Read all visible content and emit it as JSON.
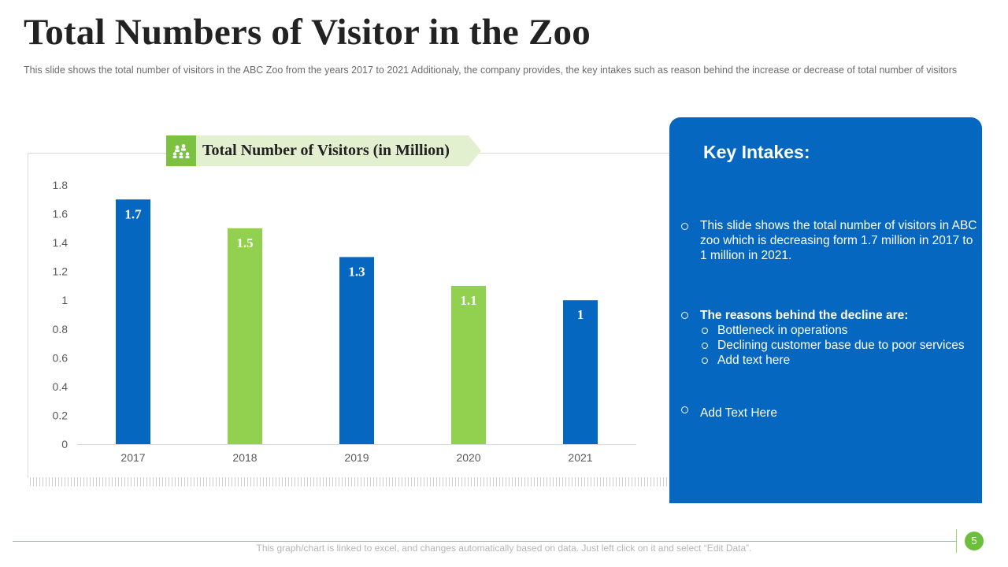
{
  "slide": {
    "title": "Total Numbers of Visitor in the Zoo",
    "subtitle": "This slide shows the total number of visitors in the ABC Zoo from the years 2017 to 2021 Additionaly, the company provides, the key intakes such as reason behind the increase or decrease of total number of visitors",
    "footer_note": "This graph/chart is linked to excel, and changes automatically based on data. Just left click on it and select “Edit Data”.",
    "page_number": "5"
  },
  "chart_data": {
    "type": "bar",
    "title": "Total Number of Visitors (in Million)",
    "categories": [
      "2017",
      "2018",
      "2019",
      "2020",
      "2021"
    ],
    "values": [
      1.7,
      1.5,
      1.3,
      1.1,
      1
    ],
    "data_labels": [
      "1.7",
      "1.5",
      "1.3",
      "1.1",
      "1"
    ],
    "bar_colors": [
      "#0567bf",
      "#92d050",
      "#0567bf",
      "#92d050",
      "#0567bf"
    ],
    "ylim": [
      0,
      1.8
    ],
    "yticks": [
      0,
      0.2,
      0.4,
      0.6,
      0.8,
      1,
      1.2,
      1.4,
      1.6,
      1.8
    ],
    "ytick_labels": [
      "0",
      "0.2",
      "0.4",
      "0.6",
      "0.8",
      "1",
      "1.2",
      "1.4",
      "1.6",
      "1.8"
    ],
    "xlabel": "",
    "ylabel": "",
    "grid": false,
    "legend": "none",
    "title_icon": "people-group-icon"
  },
  "key_intakes": {
    "heading": "Key Intakes:",
    "point1": "This slide shows the total number of visitors in ABC zoo which is decreasing form 1.7 million in 2017 to 1 million in 2021.",
    "point2_heading": "The reasons behind the decline are:",
    "point2_items": [
      "Bottleneck in operations",
      "Declining customer base due to poor services",
      "Add text here"
    ],
    "point3": "Add Text Here"
  },
  "colors": {
    "accent_blue": "#0567bf",
    "accent_green": "#92d050",
    "banner_bg": "#e2f0d0"
  }
}
